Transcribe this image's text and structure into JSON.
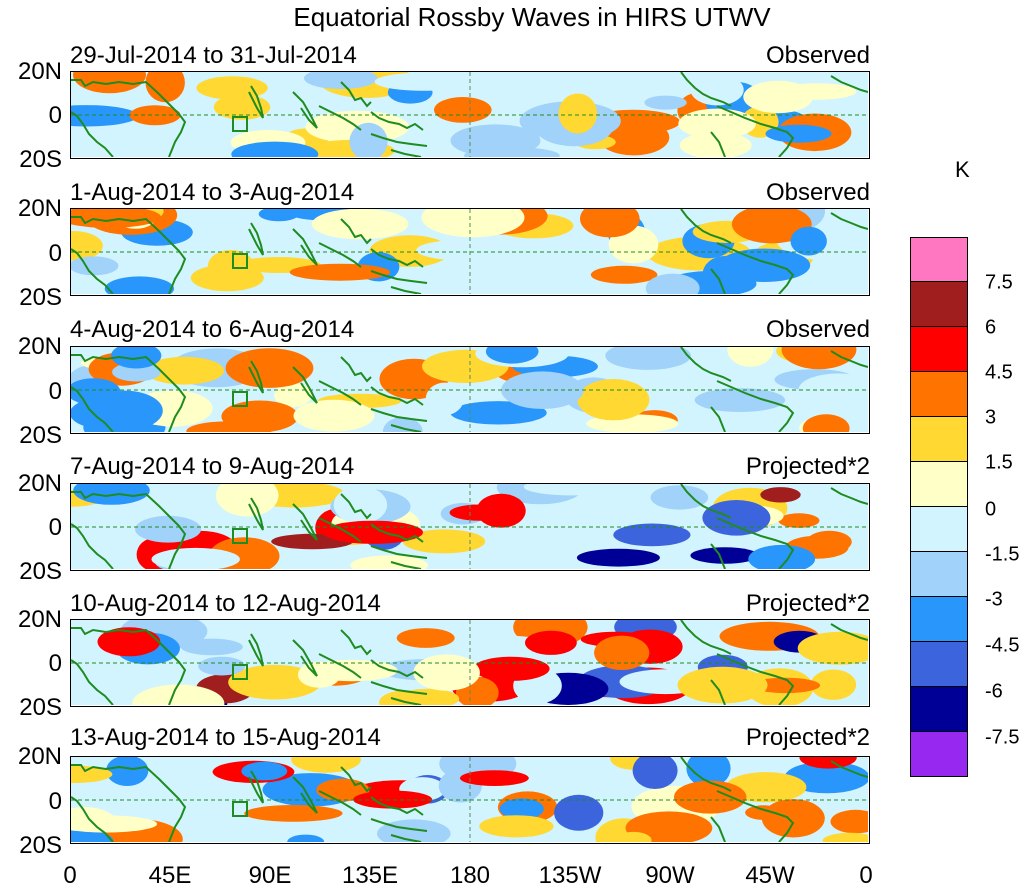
{
  "title": "Equatorial Rossby Waves in HIRS UTWV",
  "lat_labels": [
    "20N",
    "0",
    "20S"
  ],
  "lon_labels": [
    "0",
    "45E",
    "90E",
    "135E",
    "180",
    "135W",
    "90W",
    "45W",
    "0"
  ],
  "panels": [
    {
      "dates": "29-Jul-2014 to 31-Jul-2014",
      "kind": "Observed"
    },
    {
      "dates": "1-Aug-2014 to 3-Aug-2014",
      "kind": "Observed"
    },
    {
      "dates": "4-Aug-2014 to 6-Aug-2014",
      "kind": "Observed"
    },
    {
      "dates": "7-Aug-2014 to 9-Aug-2014",
      "kind": "Projected*2"
    },
    {
      "dates": "10-Aug-2014 to 12-Aug-2014",
      "kind": "Projected*2"
    },
    {
      "dates": "13-Aug-2014 to 15-Aug-2014",
      "kind": "Projected*2"
    }
  ],
  "colorbar": {
    "unit": "K",
    "levels": [
      "7.5",
      "6",
      "4.5",
      "3",
      "1.5",
      "0",
      "-1.5",
      "-3",
      "-4.5",
      "-6",
      "-7.5"
    ],
    "colors": [
      "#ff77c0",
      "#a01e1e",
      "#ff0000",
      "#ff7400",
      "#ffd832",
      "#ffffc8",
      "#d2f4ff",
      "#a0d2fa",
      "#2896fa",
      "#3c64dc",
      "#000096",
      "#9628f0"
    ]
  },
  "colors": {
    "coast": "#1e8c1e",
    "equator": "#1e8c1e",
    "dateline": "#5a8c5a"
  }
}
